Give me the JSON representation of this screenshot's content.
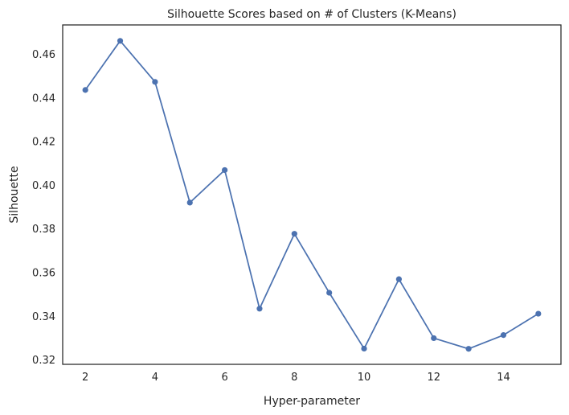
{
  "chart_data": {
    "type": "line",
    "title": "Silhouette Scores based on # of Clusters (K-Means)",
    "xlabel": "Hyper-parameter",
    "ylabel": "Silhouette",
    "x": [
      2,
      3,
      4,
      5,
      6,
      7,
      8,
      9,
      10,
      11,
      12,
      13,
      14,
      15
    ],
    "series": [
      {
        "values": [
          0.4437,
          0.4662,
          0.4474,
          0.3921,
          0.407,
          0.3435,
          0.3778,
          0.3508,
          0.3252,
          0.357,
          0.33,
          0.3251,
          0.3314,
          0.3412
        ]
      }
    ],
    "xticks": [
      "2",
      "4",
      "6",
      "8",
      "10",
      "12",
      "14"
    ],
    "yticks": [
      "0.32",
      "0.34",
      "0.36",
      "0.38",
      "0.40",
      "0.42",
      "0.44",
      "0.46"
    ],
    "xlim": [
      1.35,
      15.65
    ],
    "ylim": [
      0.318,
      0.4735
    ],
    "grid": false,
    "line_color": "#4c72b0"
  }
}
